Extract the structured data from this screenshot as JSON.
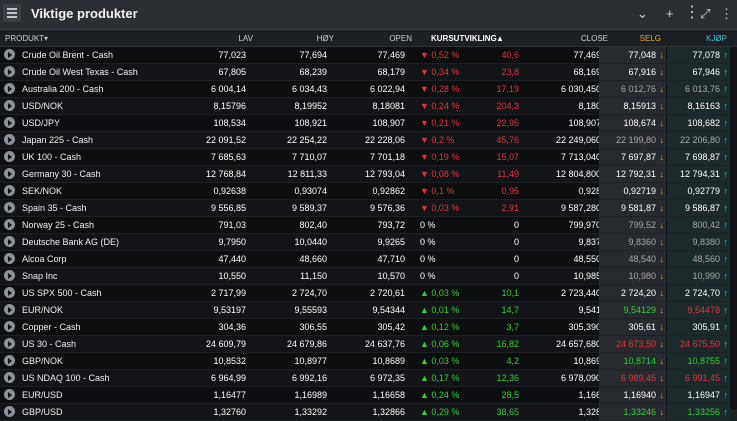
{
  "window": {
    "title": "Viktige produkter"
  },
  "columns": {
    "produkt": "PRODUKT",
    "lav": "LAV",
    "hoy": "HØY",
    "open": "OPEN",
    "kurs": "KURSUTVIKLING",
    "close": "CLOSE",
    "selg": "SELG",
    "kjop": "KJØP"
  },
  "rows": [
    {
      "name": "Crude Oil Brent - Cash",
      "lav": "77,023",
      "hoy": "77,694",
      "open": "77,469",
      "pct": "▼ 0,52 %",
      "chg": "40,6",
      "close": "77,469",
      "selg": "77,048",
      "kjop": "77,078",
      "dir": "down"
    },
    {
      "name": "Crude Oil West Texas - Cash",
      "lav": "67,805",
      "hoy": "68,239",
      "open": "68,179",
      "pct": "▼ 0,34 %",
      "chg": "23,8",
      "close": "68,169",
      "selg": "67,916",
      "kjop": "67,946",
      "dir": "down"
    },
    {
      "name": "Australia 200 - Cash",
      "lav": "6 004,14",
      "hoy": "6 034,43",
      "open": "6 022,94",
      "pct": "▼ 0,28 %",
      "chg": "17,19",
      "close": "6 030,450",
      "selg": "6 012,76",
      "kjop": "6 013,76",
      "dir": "down"
    },
    {
      "name": "USD/NOK",
      "lav": "8,15796",
      "hoy": "8,19952",
      "open": "8,18081",
      "pct": "▼ 0,24 %",
      "chg": "204,3",
      "close": "8,180",
      "selg": "8,15913",
      "kjop": "8,16163",
      "dir": "down"
    },
    {
      "name": "USD/JPY",
      "lav": "108,534",
      "hoy": "108,921",
      "open": "108,907",
      "pct": "▼ 0,21 %",
      "chg": "22,95",
      "close": "108,907",
      "selg": "108,674",
      "kjop": "108,682",
      "dir": "down"
    },
    {
      "name": "Japan 225 - Cash",
      "lav": "22 091,52",
      "hoy": "22 254,22",
      "open": "22 228,06",
      "pct": "▼ 0,2 %",
      "chg": "45,76",
      "close": "22 249,060",
      "selg": "22 199,80",
      "kjop": "22 206,80",
      "dir": "down"
    },
    {
      "name": "UK 100 - Cash",
      "lav": "7 685,63",
      "hoy": "7 710,07",
      "open": "7 701,18",
      "pct": "▼ 0,19 %",
      "chg": "15,07",
      "close": "7 713,040",
      "selg": "7 697,87",
      "kjop": "7 698,87",
      "dir": "down"
    },
    {
      "name": "Germany 30 - Cash",
      "lav": "12 768,84",
      "hoy": "12 811,33",
      "open": "12 793,04",
      "pct": "▼ 0,08 %",
      "chg": "11,49",
      "close": "12 804,800",
      "selg": "12 792,31",
      "kjop": "12 794,31",
      "dir": "down"
    },
    {
      "name": "SEK/NOK",
      "lav": "0,92638",
      "hoy": "0,93074",
      "open": "0,92862",
      "pct": "▼ 0,1 %",
      "chg": "0,95",
      "close": "0,928",
      "selg": "0,92719",
      "kjop": "0,92779",
      "dir": "down"
    },
    {
      "name": "Spain 35 - Cash",
      "lav": "9 556,85",
      "hoy": "9 589,37",
      "open": "9 576,36",
      "pct": "▼ 0,03 %",
      "chg": "2,91",
      "close": "9 587,280",
      "selg": "9 581,87",
      "kjop": "9 586,87",
      "dir": "down"
    },
    {
      "name": "Norway 25 - Cash",
      "lav": "791,03",
      "hoy": "802,40",
      "open": "793,72",
      "pct": "0 %",
      "chg": "0",
      "close": "799,970",
      "selg": "799,52",
      "kjop": "800,42",
      "dir": "flat"
    },
    {
      "name": "Deutsche Bank AG (DE)",
      "lav": "9,7950",
      "hoy": "10,0440",
      "open": "9,9265",
      "pct": "0 %",
      "chg": "0",
      "close": "9,837",
      "selg": "9,8360",
      "kjop": "9,8380",
      "dir": "flat"
    },
    {
      "name": "Alcoa Corp",
      "lav": "47,440",
      "hoy": "48,660",
      "open": "47,710",
      "pct": "0 %",
      "chg": "0",
      "close": "48,550",
      "selg": "48,540",
      "kjop": "48,560",
      "dir": "flat"
    },
    {
      "name": "Snap Inc",
      "lav": "10,550",
      "hoy": "11,150",
      "open": "10,570",
      "pct": "0 %",
      "chg": "0",
      "close": "10,985",
      "selg": "10,980",
      "kjop": "10,990",
      "dir": "flat"
    },
    {
      "name": "US SPX 500 - Cash",
      "lav": "2 717,99",
      "hoy": "2 724,70",
      "open": "2 720,61",
      "pct": "▲ 0,03 %",
      "chg": "10,1",
      "close": "2 723,440",
      "selg": "2 724,20",
      "kjop": "2 724,70",
      "dir": "up"
    },
    {
      "name": "EUR/NOK",
      "lav": "9,53197",
      "hoy": "9,55593",
      "open": "9,54344",
      "pct": "▲ 0,01 %",
      "chg": "14,7",
      "close": "9,541",
      "selg": "9,54129",
      "kjop": "9,54478",
      "dir": "up"
    },
    {
      "name": "Copper - Cash",
      "lav": "304,36",
      "hoy": "306,55",
      "open": "305,42",
      "pct": "▲ 0,12 %",
      "chg": "3,7",
      "close": "305,390",
      "selg": "305,61",
      "kjop": "305,91",
      "dir": "up"
    },
    {
      "name": "US 30 - Cash",
      "lav": "24 609,79",
      "hoy": "24 679,86",
      "open": "24 637,76",
      "pct": "▲ 0,06 %",
      "chg": "16,82",
      "close": "24 657,680",
      "selg": "24 673,50",
      "kjop": "24 675,50",
      "dir": "up"
    },
    {
      "name": "GBP/NOK",
      "lav": "10,8532",
      "hoy": "10,8977",
      "open": "10,8689",
      "pct": "▲ 0,03 %",
      "chg": "4,2",
      "close": "10,869",
      "selg": "10,8714",
      "kjop": "10,8755",
      "dir": "up"
    },
    {
      "name": "US NDAQ 100 - Cash",
      "lav": "6 964,99",
      "hoy": "6 992,16",
      "open": "6 972,35",
      "pct": "▲ 0,17 %",
      "chg": "12,36",
      "close": "6 978,090",
      "selg": "6 989,45",
      "kjop": "6 991,45",
      "dir": "up"
    },
    {
      "name": "EUR/USD",
      "lav": "1,16477",
      "hoy": "1,16989",
      "open": "1,16658",
      "pct": "▲ 0,24 %",
      "chg": "28,5",
      "close": "1,166",
      "selg": "1,16940",
      "kjop": "1,16947",
      "dir": "up"
    },
    {
      "name": "GBP/USD",
      "lav": "1,32760",
      "hoy": "1,33292",
      "open": "1,32866",
      "pct": "▲ 0,29 %",
      "chg": "38,65",
      "close": "1,328",
      "selg": "1,33246",
      "kjop": "1,33256",
      "dir": "up"
    }
  ],
  "selg_colors": [
    "#ffffff",
    "#ffffff",
    "#a7a7a7",
    "#ffffff",
    "#ffffff",
    "#a7a7a7",
    "#ffffff",
    "#ffffff",
    "#ffffff",
    "#ffffff",
    "#a7a7a7",
    "#a7a7a7",
    "#a7a7a7",
    "#a7a7a7",
    "#ffffff",
    "#2ed12f",
    "#ffffff",
    "#e0343b",
    "#2ed12f",
    "#e0343b",
    "#ffffff",
    "#2ed12f"
  ],
  "kjop_colors": [
    "#ffffff",
    "#ffffff",
    "#a7a7a7",
    "#ffffff",
    "#ffffff",
    "#a7a7a7",
    "#ffffff",
    "#ffffff",
    "#ffffff",
    "#ffffff",
    "#a7a7a7",
    "#a7a7a7",
    "#a7a7a7",
    "#a7a7a7",
    "#ffffff",
    "#e0343b",
    "#ffffff",
    "#e0343b",
    "#2ed12f",
    "#e0343b",
    "#ffffff",
    "#2ed12f"
  ]
}
